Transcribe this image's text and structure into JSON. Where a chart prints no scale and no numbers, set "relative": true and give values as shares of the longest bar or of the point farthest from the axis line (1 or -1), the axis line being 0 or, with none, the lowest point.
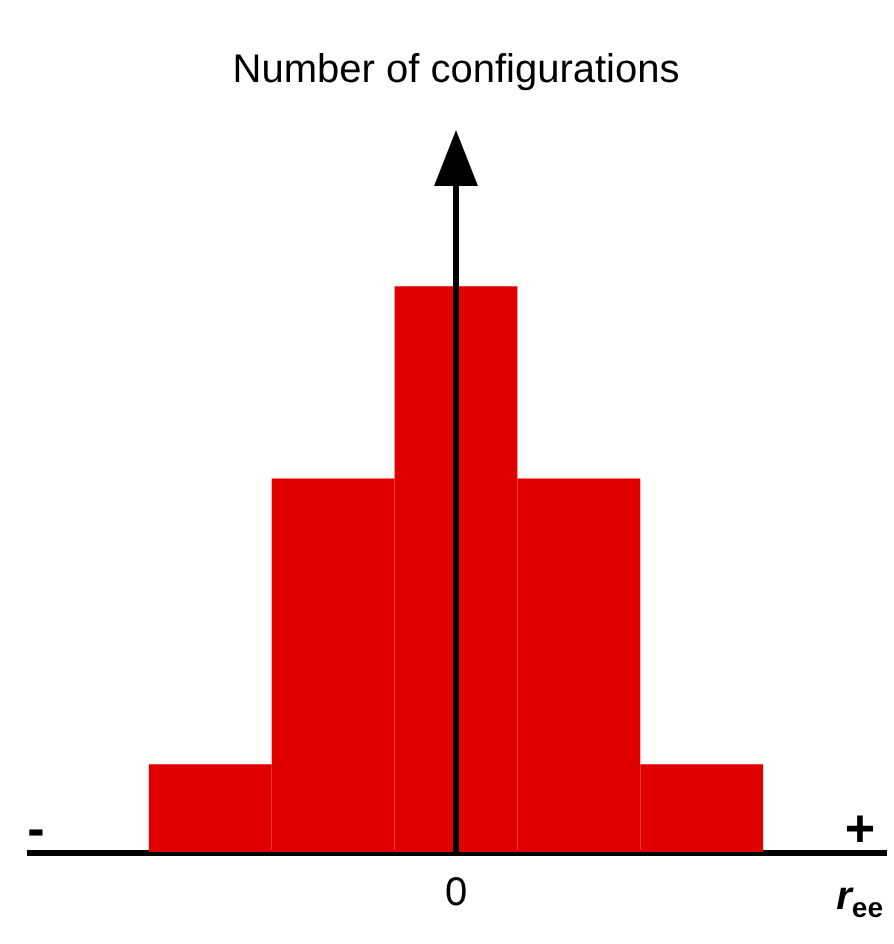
{
  "chart_data": {
    "type": "bar",
    "relative": true,
    "categories": [
      null,
      null,
      "0",
      null,
      null
    ],
    "values": [
      0.155,
      0.66,
      1,
      0.66,
      0.155
    ],
    "color": "#e00000",
    "ylabel": "Number of configurations",
    "xlabel": "r$_{ee}$",
    "annotations": [
      "-",
      "+"
    ]
  }
}
